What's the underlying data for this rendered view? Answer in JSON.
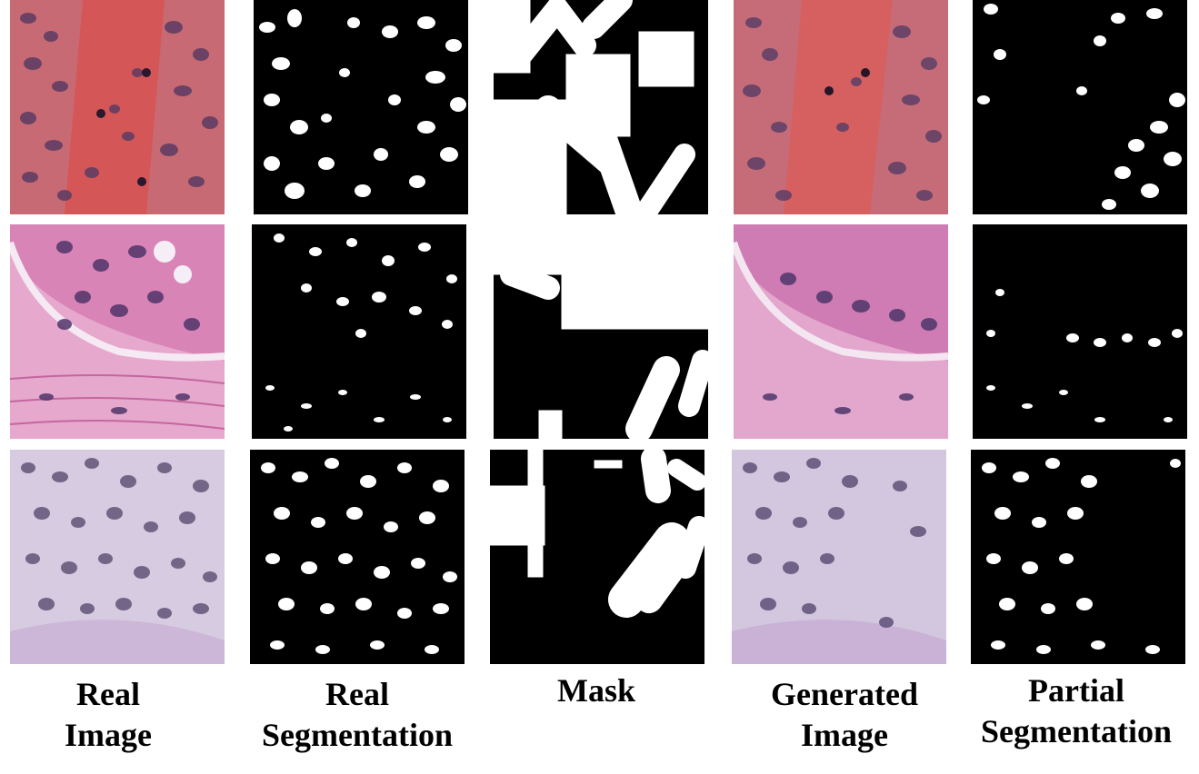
{
  "captions": {
    "real_image": [
      "Real",
      "Image"
    ],
    "real_segmentation": [
      "Real",
      "Segmentation"
    ],
    "mask": [
      "Mask"
    ],
    "generated_image": [
      "Generated",
      "Image"
    ],
    "partial_segmentation": [
      "Partial",
      "Segmentation"
    ]
  },
  "rows": [
    {
      "stain": "pink-red",
      "tissue_color": "#c86a73",
      "nuclei_color": "#5b3c63"
    },
    {
      "stain": "pink-magenta",
      "tissue_color": "#d884b6",
      "nuclei_color": "#51356a"
    },
    {
      "stain": "pale-lavender",
      "tissue_color": "#d6cbe0",
      "nuclei_color": "#5a4d72"
    }
  ],
  "colors": {
    "background": "#ffffff",
    "mask_black": "#000000",
    "mask_white": "#ffffff"
  }
}
